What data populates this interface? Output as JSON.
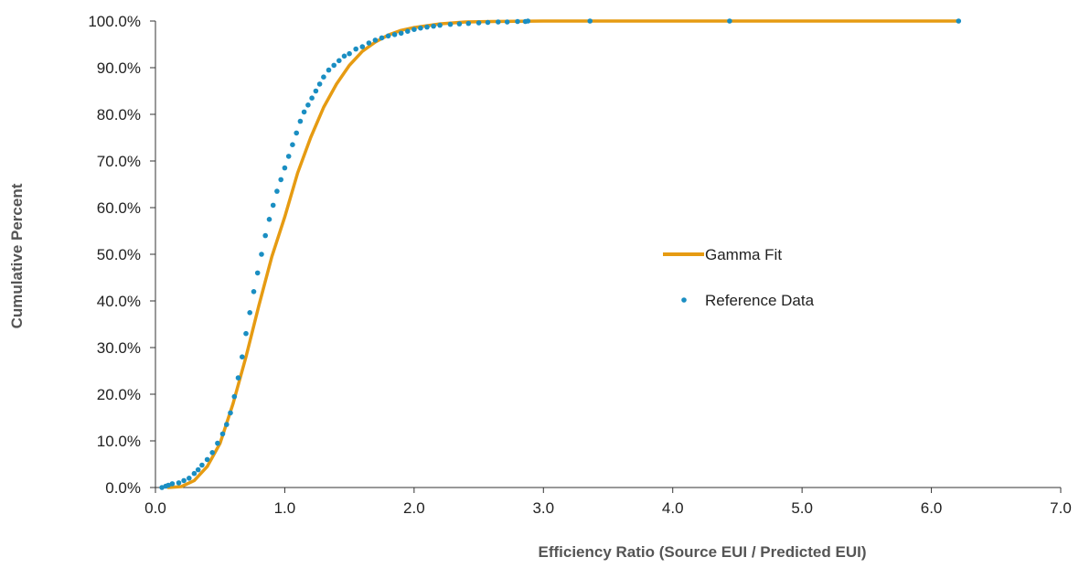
{
  "chart_data": {
    "type": "scatter",
    "title": "",
    "xlabel": "Efficiency Ratio (Source EUI / Predicted EUI)",
    "ylabel": "Cumulative Percent",
    "xlim": [
      0,
      7
    ],
    "ylim": [
      0,
      100
    ],
    "x_ticks": [
      "0.0",
      "1.0",
      "2.0",
      "3.0",
      "4.0",
      "5.0",
      "6.0",
      "7.0"
    ],
    "y_ticks": [
      "0.0%",
      "10.0%",
      "20.0%",
      "30.0%",
      "40.0%",
      "50.0%",
      "60.0%",
      "70.0%",
      "80.0%",
      "90.0%",
      "100.0%"
    ],
    "grid": false,
    "legend_position": "center-right",
    "colors": {
      "gamma": "#E69B12",
      "reference": "#1A8EC2",
      "axis": "#333333"
    },
    "series": [
      {
        "name": "Gamma Fit",
        "kind": "line",
        "x": [
          0.1,
          0.2,
          0.3,
          0.4,
          0.5,
          0.6,
          0.7,
          0.8,
          0.9,
          1.0,
          1.1,
          1.2,
          1.3,
          1.4,
          1.5,
          1.6,
          1.7,
          1.8,
          1.9,
          2.0,
          2.2,
          2.4,
          2.6,
          3.0,
          4.0,
          5.0,
          6.0,
          6.2
        ],
        "y": [
          0.0,
          0.2,
          1.5,
          4.5,
          9.5,
          18.0,
          28.0,
          39.0,
          49.5,
          58.0,
          67.5,
          75.0,
          81.5,
          86.5,
          90.5,
          93.5,
          95.5,
          97.0,
          98.0,
          98.6,
          99.4,
          99.8,
          99.9,
          100.0,
          100.0,
          100.0,
          100.0,
          100.0
        ]
      },
      {
        "name": "Reference Data",
        "kind": "points",
        "x": [
          0.05,
          0.08,
          0.1,
          0.13,
          0.18,
          0.22,
          0.26,
          0.3,
          0.33,
          0.36,
          0.4,
          0.44,
          0.48,
          0.52,
          0.55,
          0.58,
          0.61,
          0.64,
          0.67,
          0.7,
          0.73,
          0.76,
          0.79,
          0.82,
          0.85,
          0.88,
          0.91,
          0.94,
          0.97,
          1.0,
          1.03,
          1.06,
          1.09,
          1.12,
          1.15,
          1.18,
          1.21,
          1.24,
          1.27,
          1.3,
          1.34,
          1.38,
          1.42,
          1.46,
          1.5,
          1.55,
          1.6,
          1.65,
          1.7,
          1.75,
          1.8,
          1.85,
          1.9,
          1.95,
          2.0,
          2.05,
          2.1,
          2.15,
          2.2,
          2.28,
          2.35,
          2.42,
          2.5,
          2.57,
          2.65,
          2.72,
          2.8,
          2.86,
          2.88,
          3.36,
          4.44,
          6.21
        ],
        "y": [
          0.0,
          0.3,
          0.5,
          0.8,
          1.0,
          1.5,
          2.0,
          3.0,
          3.8,
          4.8,
          6.0,
          7.5,
          9.5,
          11.5,
          13.5,
          16.0,
          19.5,
          23.5,
          28.0,
          33.0,
          37.5,
          42.0,
          46.0,
          50.0,
          54.0,
          57.5,
          60.5,
          63.5,
          66.0,
          68.5,
          71.0,
          73.5,
          76.0,
          78.5,
          80.5,
          82.0,
          83.5,
          85.0,
          86.5,
          88.0,
          89.5,
          90.5,
          91.5,
          92.5,
          93.0,
          94.0,
          94.5,
          95.3,
          95.9,
          96.4,
          96.8,
          97.1,
          97.4,
          97.8,
          98.2,
          98.5,
          98.7,
          98.9,
          99.1,
          99.3,
          99.4,
          99.5,
          99.6,
          99.7,
          99.8,
          99.8,
          99.9,
          99.9,
          100.0,
          100.0,
          100.0,
          100.0
        ]
      }
    ]
  }
}
